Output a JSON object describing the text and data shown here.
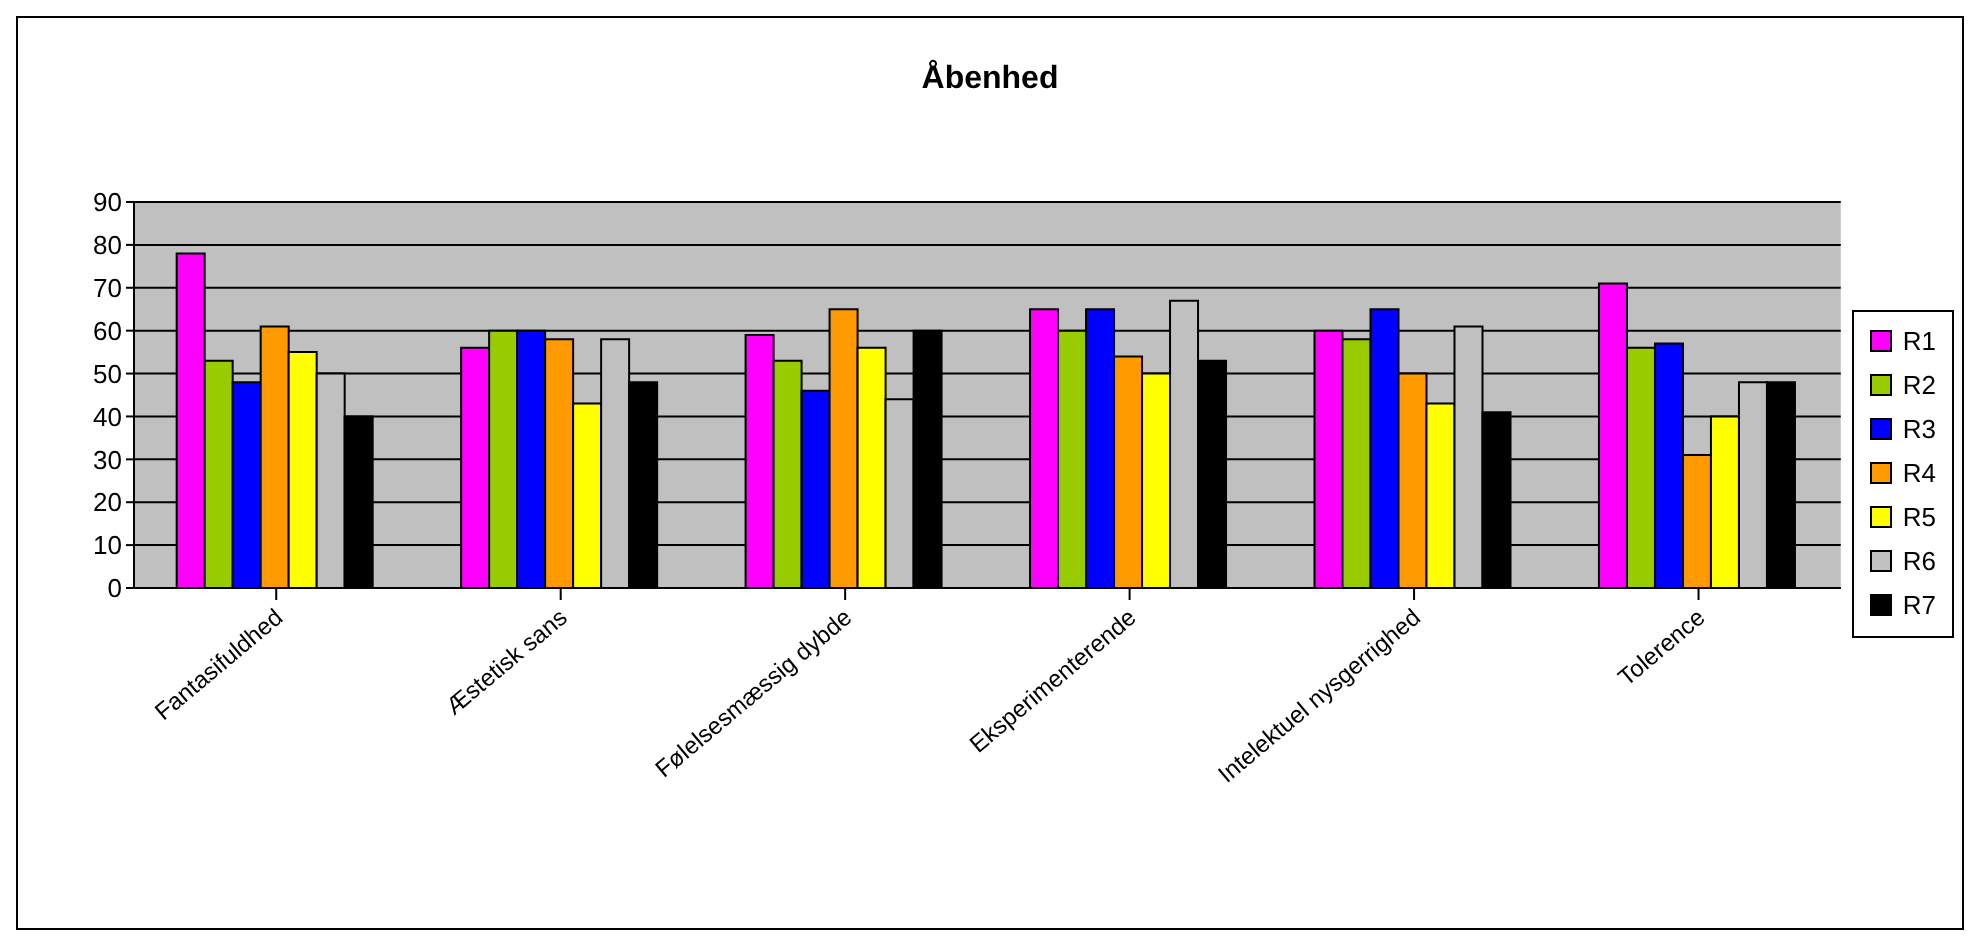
{
  "chart_data": {
    "type": "bar",
    "title": "Åbenhed",
    "categories": [
      "Fantasifuldhed",
      "Æstetisk sans",
      "Følelsesmæssig dybde",
      "Eksperimenterende",
      "Intelektuel nysgerrighed",
      "Tolerence"
    ],
    "series": [
      {
        "name": "R1",
        "color": "#ff00ff",
        "values": [
          78,
          56,
          59,
          65,
          60,
          71
        ]
      },
      {
        "name": "R2",
        "color": "#99cc00",
        "values": [
          53,
          60,
          53,
          60,
          58,
          56
        ]
      },
      {
        "name": "R3",
        "color": "#0000ff",
        "values": [
          48,
          60,
          46,
          65,
          65,
          57
        ]
      },
      {
        "name": "R4",
        "color": "#ff9900",
        "values": [
          61,
          58,
          65,
          54,
          50,
          31
        ]
      },
      {
        "name": "R5",
        "color": "#ffff00",
        "values": [
          55,
          43,
          56,
          50,
          43,
          40
        ]
      },
      {
        "name": "R6",
        "color": "#c0c0c0",
        "values": [
          50,
          58,
          44,
          67,
          61,
          48
        ]
      },
      {
        "name": "R7",
        "color": "#000000",
        "values": [
          40,
          48,
          60,
          53,
          41,
          48
        ]
      }
    ],
    "ylim": [
      0,
      90
    ],
    "yticks": [
      0,
      10,
      20,
      30,
      40,
      50,
      60,
      70,
      80,
      90
    ],
    "grid": "y",
    "legend": "right"
  }
}
